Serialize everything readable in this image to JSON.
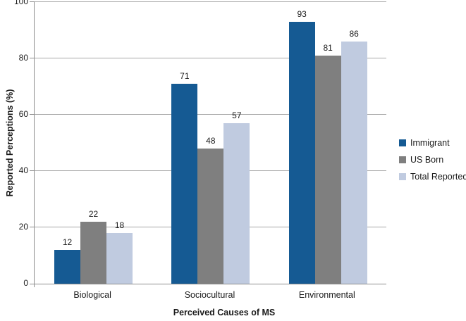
{
  "chart_data": {
    "type": "bar",
    "title": "",
    "categories": [
      "Biological",
      "Sociocultural",
      "Environmental"
    ],
    "series": [
      {
        "name": "Immigrant",
        "color": "#155A93",
        "values": [
          12,
          71,
          93
        ]
      },
      {
        "name": "US Born",
        "color": "#7F7F7F",
        "values": [
          22,
          48,
          81
        ]
      },
      {
        "name": "Total Reported",
        "color": "#C0CBE0",
        "values": [
          18,
          57,
          86
        ]
      }
    ],
    "xlabel": "Perceived Causes of MS",
    "ylabel": "Reported Perceptions (%)",
    "ylim": [
      0,
      100
    ],
    "yticks": [
      0,
      20,
      40,
      60,
      80,
      100
    ],
    "grid": "horizontal",
    "legend_position": "right",
    "data_labels": true
  },
  "colors": {
    "background": "#FFFFFF",
    "gridline": "#A6A6A6",
    "axis": "#8C8C8C",
    "text": "#1A1A1A"
  }
}
